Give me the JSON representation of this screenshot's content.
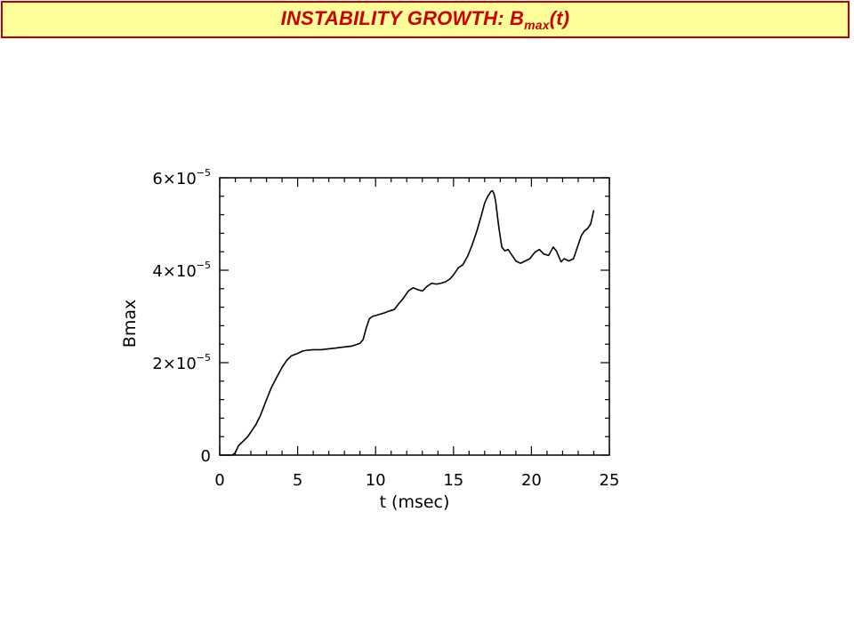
{
  "header": {
    "title_main": "INSTABILITY GROWTH:  B",
    "title_sub": "max",
    "title_suffix": "(t)",
    "colors": {
      "background": "#ffff99",
      "border": "#c00000",
      "text": "#cc0000"
    }
  },
  "chart_data": {
    "type": "line",
    "title": "",
    "xlabel": "t (msec)",
    "ylabel": "Bmax",
    "xlim": [
      0,
      25
    ],
    "ylim": [
      0,
      6e-05
    ],
    "x_ticks": [
      {
        "value": 0,
        "label": "0"
      },
      {
        "value": 5,
        "label": "5"
      },
      {
        "value": 10,
        "label": "10"
      },
      {
        "value": 15,
        "label": "15"
      },
      {
        "value": 20,
        "label": "20"
      },
      {
        "value": 25,
        "label": "25"
      }
    ],
    "y_ticks": [
      {
        "value": 0,
        "label": "0",
        "mantissa": "",
        "exponent": ""
      },
      {
        "value": 2e-05,
        "label": "2×10",
        "mantissa": "2×10",
        "exponent": "−5"
      },
      {
        "value": 4e-05,
        "label": "4×10",
        "mantissa": "4×10",
        "exponent": "−5"
      },
      {
        "value": 6e-05,
        "label": "6×10",
        "mantissa": "6×10",
        "exponent": "−5"
      }
    ],
    "grid": false,
    "line_color": "#000000",
    "series": [
      {
        "x": [
          0.0,
          0.5,
          0.8,
          1.0,
          1.2,
          1.5,
          1.8,
          2.0,
          2.3,
          2.6,
          3.0,
          3.3,
          3.6,
          4.0,
          4.3,
          4.6,
          5.0,
          5.3,
          5.6,
          6.0,
          6.5,
          7.0,
          7.5,
          8.0,
          8.5,
          9.0,
          9.2,
          9.4,
          9.6,
          9.8,
          10.0,
          10.3,
          10.6,
          10.9,
          11.2,
          11.5,
          11.8,
          12.1,
          12.4,
          12.7,
          13.0,
          13.3,
          13.6,
          13.9,
          14.2,
          14.5,
          14.8,
          15.0,
          15.3,
          15.6,
          15.9,
          16.2,
          16.5,
          16.8,
          17.0,
          17.2,
          17.4,
          17.5,
          17.6,
          17.7,
          17.9,
          18.1,
          18.3,
          18.5,
          18.7,
          19.0,
          19.3,
          19.6,
          19.9,
          20.2,
          20.5,
          20.8,
          21.1,
          21.4,
          21.6,
          21.9,
          22.1,
          22.4,
          22.7,
          23.0,
          23.2,
          23.4,
          23.6,
          23.8,
          24.0
        ],
        "y": [
          0.0,
          0.0,
          0.0,
          5e-07,
          2e-06,
          3e-06,
          4e-06,
          5e-06,
          6.5e-06,
          8.5e-06,
          1.2e-05,
          1.45e-05,
          1.65e-05,
          1.9e-05,
          2.05e-05,
          2.15e-05,
          2.2e-05,
          2.25e-05,
          2.27e-05,
          2.28e-05,
          2.28e-05,
          2.3e-05,
          2.32e-05,
          2.34e-05,
          2.36e-05,
          2.42e-05,
          2.5e-05,
          2.75e-05,
          2.95e-05,
          3e-05,
          3.02e-05,
          3.05e-05,
          3.08e-05,
          3.12e-05,
          3.15e-05,
          3.28e-05,
          3.4e-05,
          3.55e-05,
          3.62e-05,
          3.58e-05,
          3.55e-05,
          3.65e-05,
          3.72e-05,
          3.7e-05,
          3.72e-05,
          3.75e-05,
          3.82e-05,
          3.9e-05,
          4.05e-05,
          4.12e-05,
          4.3e-05,
          4.55e-05,
          4.85e-05,
          5.2e-05,
          5.45e-05,
          5.6e-05,
          5.7e-05,
          5.72e-05,
          5.65e-05,
          5.5e-05,
          4.95e-05,
          4.5e-05,
          4.42e-05,
          4.45e-05,
          4.35e-05,
          4.2e-05,
          4.15e-05,
          4.2e-05,
          4.25e-05,
          4.38e-05,
          4.45e-05,
          4.35e-05,
          4.32e-05,
          4.5e-05,
          4.42e-05,
          4.18e-05,
          4.25e-05,
          4.2e-05,
          4.25e-05,
          4.55e-05,
          4.75e-05,
          4.85e-05,
          4.9e-05,
          5e-05,
          5.3e-05
        ]
      }
    ]
  }
}
